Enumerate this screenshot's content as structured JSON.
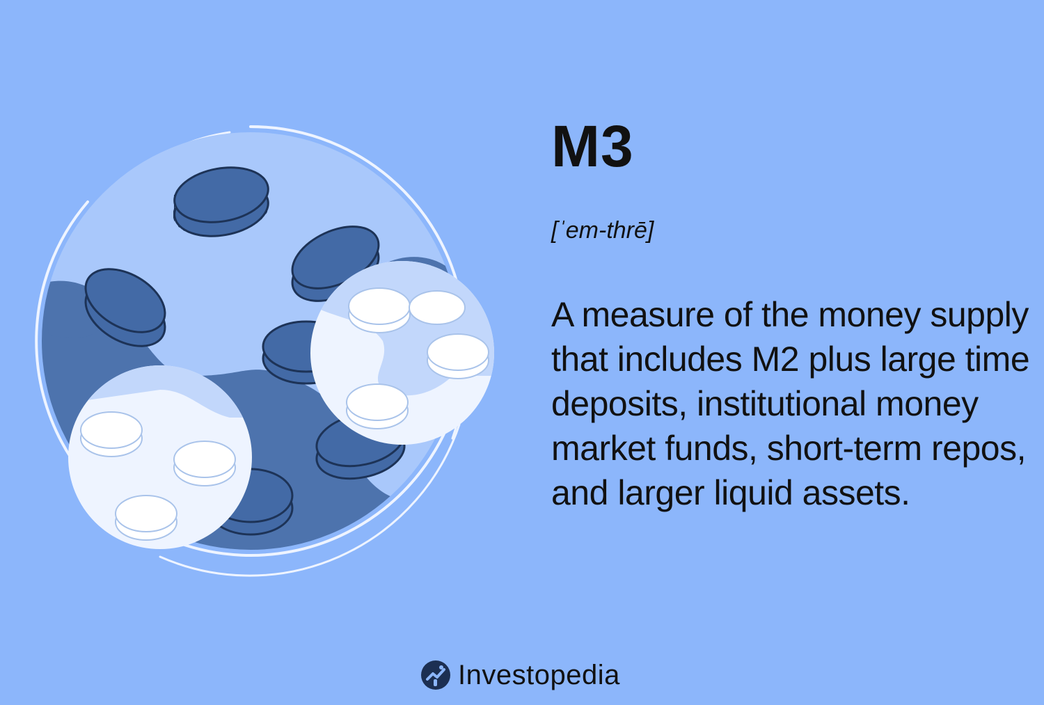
{
  "colors": {
    "background": "#8cb6fb",
    "globe_light": "#a9c8fb",
    "globe_dark": "#4d73ad",
    "coin_dark": "#436aa6",
    "coin_outline": "#1d3357",
    "bubble": "#eef4ff",
    "text": "#111111"
  },
  "term": "M3",
  "pronunciation": "[ˈem-thrē]",
  "definition": "A measure of the money supply that includes M2 plus large time deposits, institutional money market funds, short-term repos, and larger liquid assets.",
  "brand": {
    "name": "Investopedia",
    "logo_icon": "investopedia-logo-icon"
  },
  "illustration": {
    "icon": "coins-globe-illustration"
  }
}
